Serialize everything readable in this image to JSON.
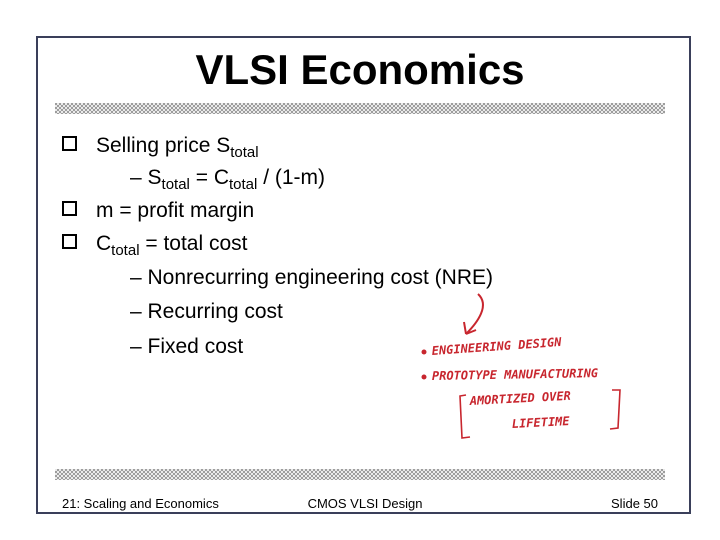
{
  "header": {
    "title": "VLSI Economics"
  },
  "body": {
    "lines": [
      {
        "level": 1,
        "runs": [
          {
            "text": "Selling price S"
          },
          {
            "sub": "total"
          }
        ]
      },
      {
        "level": 2,
        "runs": [
          {
            "text": "– S"
          },
          {
            "sub": "total"
          },
          {
            "text": " = C"
          },
          {
            "sub": "total"
          },
          {
            "text": " / (1-m)"
          }
        ]
      },
      {
        "level": 1,
        "runs": [
          {
            "text": "m = profit margin"
          }
        ]
      },
      {
        "level": 1,
        "runs": [
          {
            "text": "C"
          },
          {
            "sub": "total"
          },
          {
            "text": " = total cost"
          }
        ]
      },
      {
        "level": 2,
        "runs": [
          {
            "text": "– Nonrecurring engineering cost (NRE)"
          }
        ]
      },
      {
        "level": 2,
        "runs": [
          {
            "text": "– Recurring cost"
          }
        ]
      },
      {
        "level": 2,
        "runs": [
          {
            "text": "– Fixed cost"
          }
        ]
      }
    ]
  },
  "annotations": [
    "ENGINEERING DESIGN",
    "PROTOTYPE MANUFACTURING",
    "AMORTIZED OVER",
    "LIFETIME"
  ],
  "footer": {
    "left": "21: Scaling and Economics",
    "center": "CMOS VLSI Design",
    "right": "Slide 50"
  }
}
